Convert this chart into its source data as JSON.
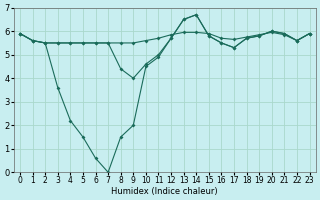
{
  "xlabel": "Humidex (Indice chaleur)",
  "xlim": [
    -0.5,
    23.5
  ],
  "ylim": [
    0,
    7
  ],
  "yticks": [
    0,
    1,
    2,
    3,
    4,
    5,
    6,
    7
  ],
  "xticks": [
    0,
    1,
    2,
    3,
    4,
    5,
    6,
    7,
    8,
    9,
    10,
    11,
    12,
    13,
    14,
    15,
    16,
    17,
    18,
    19,
    20,
    21,
    22,
    23
  ],
  "background_color": "#c8eef0",
  "grid_color": "#aad8cc",
  "line_color": "#1a6b5a",
  "line1_x": [
    0,
    1,
    2,
    3,
    4,
    5,
    6,
    7,
    8,
    9,
    10,
    11,
    12,
    13,
    14,
    15,
    16,
    17,
    18,
    19,
    20,
    21,
    22,
    23
  ],
  "line1_y": [
    5.9,
    5.6,
    5.5,
    5.5,
    5.5,
    5.5,
    5.5,
    5.5,
    5.5,
    5.5,
    5.6,
    5.7,
    5.85,
    5.95,
    5.95,
    5.9,
    5.7,
    5.65,
    5.75,
    5.85,
    5.95,
    5.85,
    5.6,
    5.9
  ],
  "line2_x": [
    0,
    1,
    2,
    3,
    4,
    5,
    6,
    7,
    8,
    9,
    10,
    11,
    12,
    13,
    14,
    15,
    16,
    17,
    18,
    19,
    20,
    21,
    22,
    23
  ],
  "line2_y": [
    5.9,
    5.6,
    5.5,
    5.5,
    5.5,
    5.5,
    5.5,
    5.5,
    4.4,
    4.0,
    4.6,
    5.0,
    5.7,
    6.5,
    6.7,
    5.8,
    5.5,
    5.3,
    5.7,
    5.8,
    6.0,
    5.9,
    5.6,
    5.9
  ],
  "line3_x": [
    0,
    1,
    2,
    3,
    4,
    5,
    6,
    7,
    8,
    9,
    10,
    11,
    12,
    13,
    14,
    15,
    16,
    17,
    18,
    19,
    20,
    21,
    22,
    23
  ],
  "line3_y": [
    5.9,
    5.6,
    5.5,
    3.6,
    2.2,
    1.5,
    0.6,
    0.0,
    1.5,
    2.0,
    4.5,
    4.9,
    5.7,
    6.5,
    6.7,
    5.8,
    5.5,
    5.3,
    5.7,
    5.8,
    6.0,
    5.9,
    5.6,
    5.9
  ]
}
